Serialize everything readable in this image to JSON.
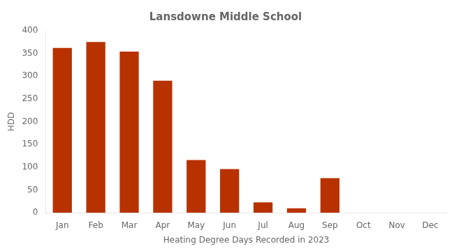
{
  "chart_data": {
    "type": "bar",
    "title": "Lansdowne Middle School",
    "xlabel": "Heating Degree Days Recorded in 2023",
    "ylabel": "HDD",
    "categories": [
      "Jan",
      "Feb",
      "Mar",
      "Apr",
      "May",
      "Jun",
      "Jul",
      "Aug",
      "Sep",
      "Oct",
      "Nov",
      "Dec"
    ],
    "values": [
      362,
      375,
      354,
      290,
      116,
      96,
      23,
      10,
      76,
      0,
      0,
      0
    ],
    "color": "#b83200",
    "ylim": [
      0,
      400
    ],
    "yticks": [
      0,
      50,
      100,
      150,
      200,
      250,
      300,
      350,
      400
    ],
    "grid": false
  }
}
